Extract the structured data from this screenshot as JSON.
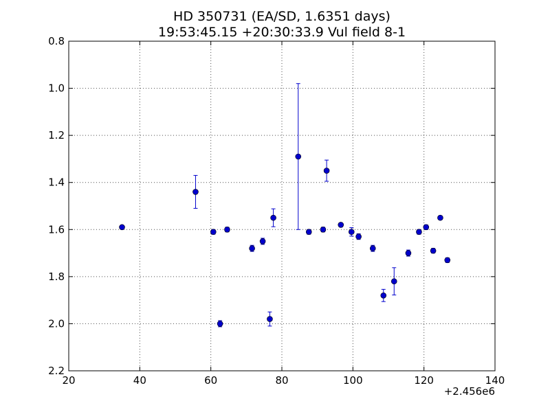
{
  "chart_data": {
    "type": "scatter",
    "title": "HD 350731 (EA/SD, 1.6351 days)",
    "subtitle": "19:53:45.15 +20:30:33.9 Vul field 8-1",
    "xlabel": "",
    "ylabel": "",
    "x_offset_label": "+2.456e6",
    "xlim": [
      20,
      140
    ],
    "ylim": [
      0.8,
      2.2
    ],
    "y_inverted": true,
    "x_ticks": [
      20,
      40,
      60,
      80,
      100,
      120,
      140
    ],
    "x_tick_labels": [
      "20",
      "40",
      "60",
      "80",
      "100",
      "120",
      "140"
    ],
    "y_ticks": [
      0.8,
      1.0,
      1.2,
      1.4,
      1.6,
      1.8,
      2.0,
      2.2
    ],
    "y_tick_labels": [
      "0.8",
      "1.0",
      "1.2",
      "1.4",
      "1.6",
      "1.8",
      "2.0",
      "2.2"
    ],
    "grid": true,
    "marker_color": "#0000cc",
    "points": [
      {
        "x": 35.0,
        "y": 1.59,
        "err": 0.008
      },
      {
        "x": 55.7,
        "y": 1.44,
        "err": 0.07
      },
      {
        "x": 60.7,
        "y": 1.61,
        "err": 0.01
      },
      {
        "x": 62.6,
        "y": 2.0,
        "err": 0.013
      },
      {
        "x": 64.6,
        "y": 1.6,
        "err": 0.01
      },
      {
        "x": 71.6,
        "y": 1.68,
        "err": 0.013
      },
      {
        "x": 74.6,
        "y": 1.65,
        "err": 0.013
      },
      {
        "x": 76.6,
        "y": 1.98,
        "err": 0.03
      },
      {
        "x": 77.6,
        "y": 1.55,
        "err": 0.038
      },
      {
        "x": 84.6,
        "y": 1.29,
        "err": 0.31
      },
      {
        "x": 87.6,
        "y": 1.61,
        "err": 0.01
      },
      {
        "x": 91.6,
        "y": 1.6,
        "err": 0.01
      },
      {
        "x": 92.6,
        "y": 1.35,
        "err": 0.045
      },
      {
        "x": 96.6,
        "y": 1.58,
        "err": 0.008
      },
      {
        "x": 99.6,
        "y": 1.61,
        "err": 0.018
      },
      {
        "x": 101.6,
        "y": 1.63,
        "err": 0.012
      },
      {
        "x": 105.6,
        "y": 1.68,
        "err": 0.013
      },
      {
        "x": 108.6,
        "y": 1.88,
        "err": 0.026
      },
      {
        "x": 111.6,
        "y": 1.82,
        "err": 0.058
      },
      {
        "x": 115.6,
        "y": 1.7,
        "err": 0.013
      },
      {
        "x": 118.6,
        "y": 1.61,
        "err": 0.01
      },
      {
        "x": 120.6,
        "y": 1.59,
        "err": 0.01
      },
      {
        "x": 122.6,
        "y": 1.69,
        "err": 0.01
      },
      {
        "x": 124.6,
        "y": 1.55,
        "err": 0.008
      },
      {
        "x": 126.6,
        "y": 1.73,
        "err": 0.01
      }
    ]
  }
}
